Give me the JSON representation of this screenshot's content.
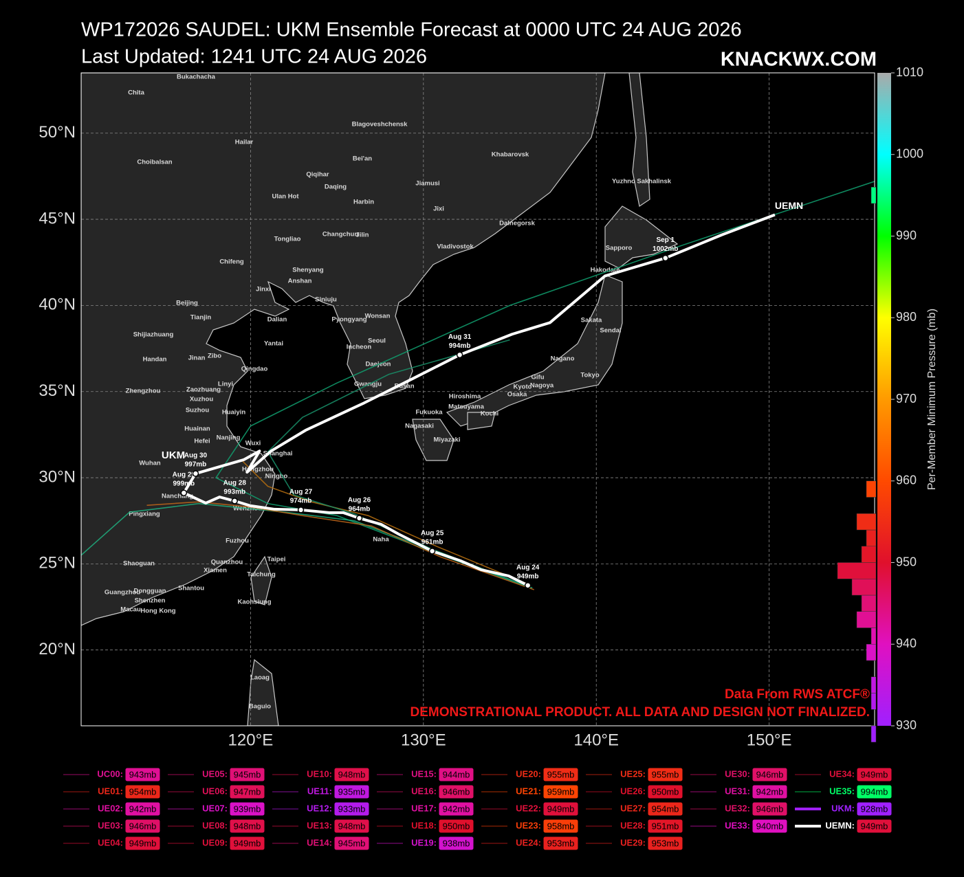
{
  "title": "WP172026 SAUDEL: UKM Ensemble Forecast at 0000 UTC 24 AUG 2026",
  "subtitle": "Last Updated: 1241 UTC 24 AUG 2026",
  "brand": "KNACKWX.COM",
  "source_note": "Data From RWS ATCF®",
  "disclaimer": "DEMONSTRATIONAL PRODUCT. ALL DATA AND DESIGN NOT FINALIZED.",
  "map": {
    "xlim": [
      110.2,
      156.1
    ],
    "ylim": [
      15.6,
      53.5
    ],
    "xticks": [
      {
        "value": 120,
        "label": "120°E"
      },
      {
        "value": 130,
        "label": "130°E"
      },
      {
        "value": 140,
        "label": "140°E"
      },
      {
        "value": 150,
        "label": "150°E"
      }
    ],
    "yticks": [
      {
        "value": 20,
        "label": "20°N"
      },
      {
        "value": 25,
        "label": "25°N"
      },
      {
        "value": 30,
        "label": "30°N"
      },
      {
        "value": 35,
        "label": "35°N"
      },
      {
        "value": 40,
        "label": "40°N"
      },
      {
        "value": 45,
        "label": "45°N"
      },
      {
        "value": 50,
        "label": "50°N"
      }
    ],
    "grid": true,
    "cities": [
      "Chita",
      "Bukachacha",
      "Blagoveshchensk",
      "Hailar",
      "Choibalsan",
      "Bei'an",
      "Khabarovsk",
      "Qiqihar",
      "Daqing",
      "Jiamusi",
      "Yuzhno Sakhalinsk",
      "Ulan Hot",
      "Harbin",
      "Jixi",
      "Dalnegorsk",
      "Changchun",
      "Jilin",
      "Tongliao",
      "Vladivostok",
      "Sapporo",
      "Chifeng",
      "Shenyang",
      "Anshan",
      "Hakodate",
      "Jinxi",
      "Beijing",
      "Siniuju",
      "Tianjin",
      "Dalian",
      "Pyongyang",
      "Wonsan",
      "Sakata",
      "Sendai",
      "Shijiazhuang",
      "Yantai",
      "Seoul",
      "Incheon",
      "Handan",
      "Jinan",
      "Zibo",
      "Qingdao",
      "Daejeon",
      "Nagano",
      "Tokyo",
      "Gifu",
      "Linyi",
      "Zhengzhou",
      "Zaozhuang",
      "Xuzhou",
      "Gwangju",
      "Busan",
      "Kyoto",
      "Nagoya",
      "Osaka",
      "Hiroshima",
      "Matsuyama",
      "Kochi",
      "Fukuoka",
      "Suzhou",
      "Huaiyin",
      "Nagasaki",
      "Huainan",
      "Miyazaki",
      "Nanjing",
      "Wuxi",
      "Hefei",
      "Shanghai",
      "Hangzhou",
      "Ningbo",
      "Wuhan",
      "Nanchang",
      "Pingxiang",
      "Wenzhou",
      "Naha",
      "Fuzhou",
      "Taipei",
      "Shaoguan",
      "Quanzhou",
      "Xiamen",
      "Taichung",
      "Guangzhou",
      "Dongguan",
      "Shantou",
      "Shenzhen",
      "Kaohsiung",
      "Macau",
      "Hong Kong",
      "Laoag",
      "Baguio"
    ]
  },
  "member_tracks": [
    {
      "name": "UE35",
      "color": "#10a070",
      "lon": [
        136.2,
        130.5,
        125,
        121,
        118,
        120,
        125,
        135,
        145,
        157
      ],
      "lat": [
        23.6,
        25.7,
        27.8,
        28.5,
        30,
        33,
        35.5,
        40,
        43.5,
        47.5
      ]
    },
    {
      "name": "UE11",
      "color": "#20b080",
      "lon": [
        136.3,
        130.5,
        126,
        122,
        117,
        113,
        110.2
      ],
      "lat": [
        23.6,
        25.8,
        27.5,
        28,
        28.5,
        28,
        25.5
      ]
    },
    {
      "name": "UE12",
      "color": "#c0661a",
      "lon": [
        136.4,
        131,
        127,
        123,
        120,
        117,
        114
      ],
      "lat": [
        23.5,
        25.4,
        27.2,
        27.8,
        28.3,
        28.6,
        28.4
      ]
    },
    {
      "name": "UE19",
      "color": "#b8700f",
      "lon": [
        136.1,
        130.8,
        126.8,
        123.5,
        121,
        119.5
      ],
      "lat": [
        23.8,
        26,
        27.8,
        28.6,
        29.5,
        31
      ]
    },
    {
      "name": "UE20",
      "color": "#19906a",
      "lon": [
        136,
        130.4,
        126,
        122.5,
        121,
        123,
        128,
        135
      ],
      "lat": [
        23.7,
        25.9,
        27.9,
        29,
        31.5,
        33.5,
        36,
        38
      ]
    }
  ],
  "mean_track": {
    "name": "UEMN",
    "label_ukm": "UKM",
    "lon": [
      136.04,
      134.93,
      133.34,
      132.14,
      130.51,
      128.56,
      127.56,
      126.29,
      125.37,
      124.58,
      122.91,
      121.39,
      120.0,
      119.08,
      118.21,
      117.41,
      116.82,
      116.14,
      116.82,
      119.6,
      120.52,
      119.8,
      121.19,
      123.18,
      126.57,
      129.36,
      132.1,
      135.13,
      137.32,
      140.5,
      144.0,
      147.27,
      150.33
    ],
    "lat": [
      23.75,
      24.3,
      24.66,
      25.18,
      25.74,
      26.73,
      27.29,
      27.65,
      27.97,
      27.97,
      28.13,
      28.17,
      28.37,
      28.65,
      28.88,
      28.53,
      28.8,
      29.12,
      30.24,
      31.04,
      31.55,
      30.32,
      31.55,
      32.75,
      34.34,
      35.74,
      37.13,
      38.33,
      39.0,
      41.71,
      42.75,
      44.1,
      45.26
    ],
    "points": [
      {
        "date": "Aug 24",
        "pressure": 949,
        "pressure_label": "949mb",
        "lon": 136.04,
        "lat": 23.75
      },
      {
        "date": "Aug 25",
        "pressure": 961,
        "pressure_label": "961mb",
        "lon": 130.51,
        "lat": 25.74
      },
      {
        "date": "Aug 26",
        "pressure": 964,
        "pressure_label": "964mb",
        "lon": 126.29,
        "lat": 27.65
      },
      {
        "date": "Aug 27",
        "pressure": 974,
        "pressure_label": "974mb",
        "lon": 122.91,
        "lat": 28.13
      },
      {
        "date": "Aug 28",
        "pressure": 993,
        "pressure_label": "993mb",
        "lon": 119.08,
        "lat": 28.65
      },
      {
        "date": "Aug 29",
        "pressure": 999,
        "pressure_label": "999mb",
        "lon": 116.14,
        "lat": 29.12
      },
      {
        "date": "Aug 30",
        "pressure": 997,
        "pressure_label": "997mb",
        "lon": 116.82,
        "lat": 30.24
      },
      {
        "date": "Aug 31",
        "pressure": 994,
        "pressure_label": "994mb",
        "lon": 132.1,
        "lat": 37.13
      },
      {
        "date": "Sep 1",
        "pressure": 1002,
        "pressure_label": "1002mb",
        "lon": 144.0,
        "lat": 42.75
      }
    ]
  },
  "colorbar": {
    "label": "Per-Member Minimum Pressure (mb)",
    "lim": [
      930,
      1010
    ],
    "ticks": [
      930,
      940,
      950,
      960,
      970,
      980,
      990,
      1000,
      1010
    ],
    "colors": [
      "#a020ff",
      "#e010c0",
      "#e0102c",
      "#ff4a00",
      "#ff9a00",
      "#ffff00",
      "#00ff00",
      "#00ffff",
      "#aaaaaa"
    ]
  },
  "legend": [
    {
      "name": "UC00:",
      "pressure": 943,
      "label": "943mb"
    },
    {
      "name": "UE01:",
      "pressure": 954,
      "label": "954mb"
    },
    {
      "name": "UE02:",
      "pressure": 942,
      "label": "942mb"
    },
    {
      "name": "UE03:",
      "pressure": 946,
      "label": "946mb"
    },
    {
      "name": "UE04:",
      "pressure": 949,
      "label": "949mb"
    },
    {
      "name": "UE05:",
      "pressure": 945,
      "label": "945mb"
    },
    {
      "name": "UE06:",
      "pressure": 947,
      "label": "947mb"
    },
    {
      "name": "UE07:",
      "pressure": 939,
      "label": "939mb"
    },
    {
      "name": "UE08:",
      "pressure": 948,
      "label": "948mb"
    },
    {
      "name": "UE09:",
      "pressure": 949,
      "label": "949mb"
    },
    {
      "name": "UE10:",
      "pressure": 948,
      "label": "948mb"
    },
    {
      "name": "UE11:",
      "pressure": 935,
      "label": "935mb"
    },
    {
      "name": "UE12:",
      "pressure": 933,
      "label": "933mb"
    },
    {
      "name": "UE13:",
      "pressure": 948,
      "label": "948mb"
    },
    {
      "name": "UE14:",
      "pressure": 945,
      "label": "945mb"
    },
    {
      "name": "UE15:",
      "pressure": 944,
      "label": "944mb"
    },
    {
      "name": "UE16:",
      "pressure": 946,
      "label": "946mb"
    },
    {
      "name": "UE17:",
      "pressure": 942,
      "label": "942mb"
    },
    {
      "name": "UE18:",
      "pressure": 950,
      "label": "950mb"
    },
    {
      "name": "UE19:",
      "pressure": 938,
      "label": "938mb"
    },
    {
      "name": "UE20:",
      "pressure": 955,
      "label": "955mb"
    },
    {
      "name": "UE21:",
      "pressure": 959,
      "label": "959mb"
    },
    {
      "name": "UE22:",
      "pressure": 949,
      "label": "949mb"
    },
    {
      "name": "UE23:",
      "pressure": 958,
      "label": "958mb"
    },
    {
      "name": "UE24:",
      "pressure": 953,
      "label": "953mb"
    },
    {
      "name": "UE25:",
      "pressure": 955,
      "label": "955mb"
    },
    {
      "name": "UE26:",
      "pressure": 950,
      "label": "950mb"
    },
    {
      "name": "UE27:",
      "pressure": 954,
      "label": "954mb"
    },
    {
      "name": "UE28:",
      "pressure": 951,
      "label": "951mb"
    },
    {
      "name": "UE29:",
      "pressure": 953,
      "label": "953mb"
    },
    {
      "name": "UE30:",
      "pressure": 946,
      "label": "946mb"
    },
    {
      "name": "UE31:",
      "pressure": 942,
      "label": "942mb"
    },
    {
      "name": "UE32:",
      "pressure": 946,
      "label": "946mb"
    },
    {
      "name": "UE33:",
      "pressure": 940,
      "label": "940mb"
    },
    {
      "name": "UE34:",
      "pressure": 949,
      "label": "949mb"
    },
    {
      "name": "UE35:",
      "pressure": 994,
      "label": "994mb"
    },
    {
      "name": "UKM:",
      "pressure": 928,
      "label": "928mb"
    },
    {
      "name": "UEMN:",
      "pressure": 949,
      "label": "949mb"
    }
  ]
}
